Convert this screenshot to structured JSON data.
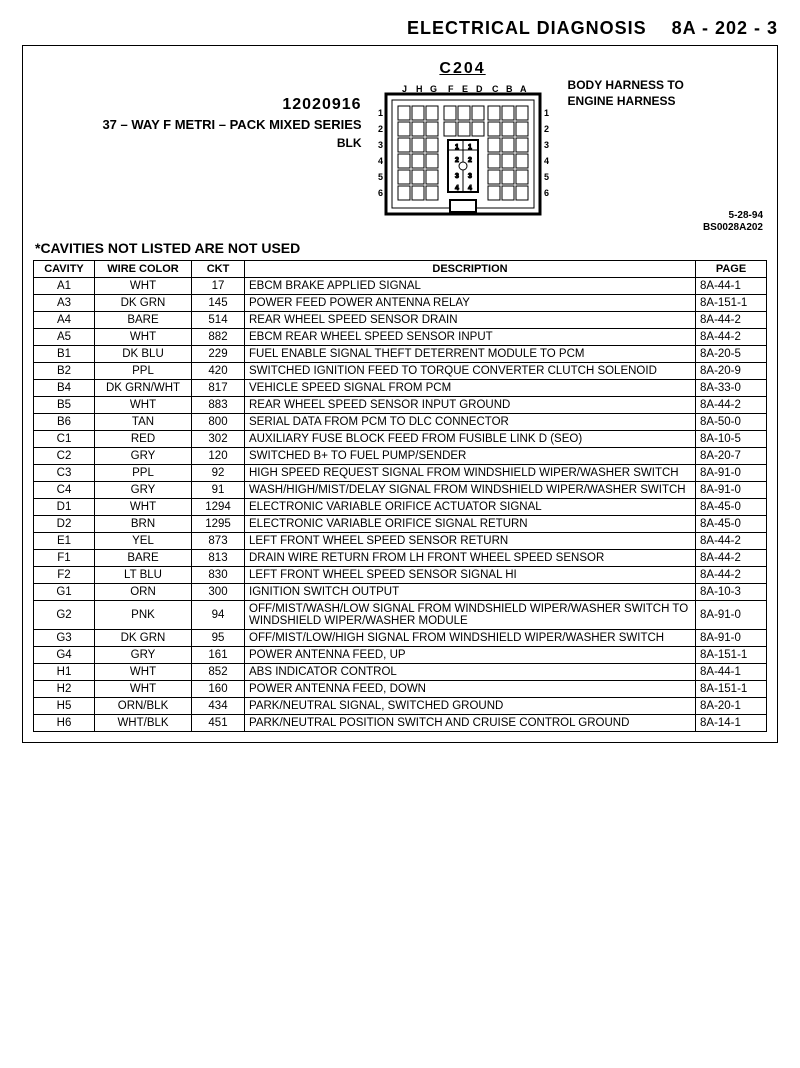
{
  "header": "ELECTRICAL DIAGNOSIS  8A - 202 - 3",
  "connector": {
    "id": "C204",
    "part_number": "12020916",
    "type_line": "37 – WAY F METRI – PACK MIXED SERIES",
    "color": "BLK",
    "harness_line1": "BODY HARNESS TO",
    "harness_line2": "ENGINE HARNESS",
    "date": "5‑28‑94",
    "code": "BS0028A202",
    "col_letters": [
      "J",
      "H",
      "G",
      "F",
      "E",
      "D",
      "C",
      "B",
      "A"
    ],
    "row_nums": [
      "1",
      "2",
      "3",
      "4",
      "5",
      "6"
    ]
  },
  "note": "*CAVITIES NOT LISTED ARE NOT USED",
  "table": {
    "columns": [
      "CAVITY",
      "WIRE COLOR",
      "CKT",
      "DESCRIPTION",
      "PAGE"
    ],
    "col_align": [
      "center",
      "center",
      "center",
      "left",
      "left"
    ],
    "rows": [
      [
        "A1",
        "WHT",
        "17",
        "EBCM BRAKE APPLIED SIGNAL",
        "8A-44-1"
      ],
      [
        "A3",
        "DK GRN",
        "145",
        "POWER FEED POWER ANTENNA RELAY",
        "8A-151-1"
      ],
      [
        "A4",
        "BARE",
        "514",
        "REAR WHEEL SPEED SENSOR DRAIN",
        "8A-44-2"
      ],
      [
        "A5",
        "WHT",
        "882",
        "EBCM REAR WHEEL SPEED SENSOR INPUT",
        "8A-44-2"
      ],
      [
        "B1",
        "DK BLU",
        "229",
        "FUEL ENABLE SIGNAL THEFT DETERRENT MODULE TO PCM",
        "8A-20-5"
      ],
      [
        "B2",
        "PPL",
        "420",
        "SWITCHED IGNITION FEED TO TORQUE CONVERTER CLUTCH SOLENOID",
        "8A-20-9"
      ],
      [
        "B4",
        "DK GRN/WHT",
        "817",
        "VEHICLE SPEED SIGNAL FROM PCM",
        "8A-33-0"
      ],
      [
        "B5",
        "WHT",
        "883",
        "REAR WHEEL SPEED SENSOR INPUT GROUND",
        "8A-44-2"
      ],
      [
        "B6",
        "TAN",
        "800",
        "SERIAL DATA FROM PCM TO DLC CONNECTOR",
        "8A-50-0"
      ],
      [
        "C1",
        "RED",
        "302",
        "AUXILIARY FUSE BLOCK FEED FROM FUSIBLE LINK D (SEO)",
        "8A-10-5"
      ],
      [
        "C2",
        "GRY",
        "120",
        "SWITCHED B+ TO FUEL PUMP/SENDER",
        "8A-20-7"
      ],
      [
        "C3",
        "PPL",
        "92",
        "HIGH SPEED REQUEST SIGNAL FROM WINDSHIELD WIPER/WASHER SWITCH",
        "8A-91-0"
      ],
      [
        "C4",
        "GRY",
        "91",
        "WASH/HIGH/MIST/DELAY SIGNAL FROM WINDSHIELD WIPER/WASHER SWITCH",
        "8A-91-0"
      ],
      [
        "D1",
        "WHT",
        "1294",
        "ELECTRONIC VARIABLE ORIFICE ACTUATOR SIGNAL",
        "8A-45-0"
      ],
      [
        "D2",
        "BRN",
        "1295",
        "ELECTRONIC VARIABLE ORIFICE SIGNAL RETURN",
        "8A-45-0"
      ],
      [
        "E1",
        "YEL",
        "873",
        "LEFT FRONT WHEEL SPEED SENSOR RETURN",
        "8A-44-2"
      ],
      [
        "F1",
        "BARE",
        "813",
        "DRAIN WIRE RETURN FROM LH FRONT WHEEL SPEED SENSOR",
        "8A-44-2"
      ],
      [
        "F2",
        "LT BLU",
        "830",
        "LEFT FRONT WHEEL SPEED SENSOR SIGNAL HI",
        "8A-44-2"
      ],
      [
        "G1",
        "ORN",
        "300",
        "IGNITION SWITCH OUTPUT",
        "8A-10-3"
      ],
      [
        "G2",
        "PNK",
        "94",
        "OFF/MIST/WASH/LOW SIGNAL FROM WINDSHIELD WIPER/WASHER SWITCH TO WINDSHIELD WIPER/WASHER MODULE",
        "8A-91-0"
      ],
      [
        "G3",
        "DK GRN",
        "95",
        "OFF/MIST/LOW/HIGH SIGNAL FROM WINDSHIELD WIPER/WASHER SWITCH",
        "8A-91-0"
      ],
      [
        "G4",
        "GRY",
        "161",
        "POWER ANTENNA FEED, UP",
        "8A-151-1"
      ],
      [
        "H1",
        "WHT",
        "852",
        "ABS INDICATOR CONTROL",
        "8A-44-1"
      ],
      [
        "H2",
        "WHT",
        "160",
        "POWER ANTENNA FEED, DOWN",
        "8A-151-1"
      ],
      [
        "H5",
        "ORN/BLK",
        "434",
        "PARK/NEUTRAL SIGNAL, SWITCHED GROUND",
        "8A-20-1"
      ],
      [
        "H6",
        "WHT/BLK",
        "451",
        "PARK/NEUTRAL POSITION SWITCH AND CRUISE CONTROL GROUND",
        "8A-14-1"
      ]
    ]
  },
  "colors": {
    "line": "#000000",
    "bg": "#ffffff"
  }
}
